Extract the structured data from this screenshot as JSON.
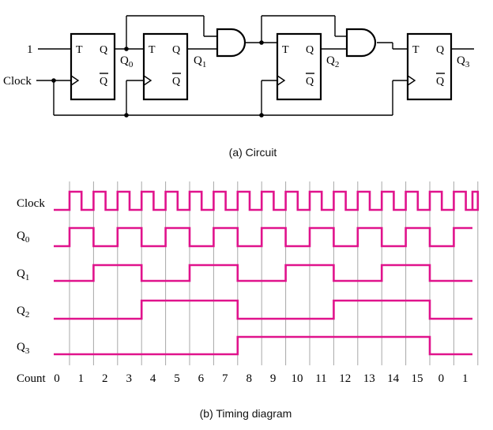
{
  "circuit": {
    "input_label": "1",
    "clock_label": "Clock",
    "ff_t_label": "T",
    "ff_q_label": "Q",
    "ff_qbar_label": "Q",
    "outputs": [
      {
        "base": "Q",
        "sub": "0"
      },
      {
        "base": "Q",
        "sub": "1"
      },
      {
        "base": "Q",
        "sub": "2"
      },
      {
        "base": "Q",
        "sub": "3"
      }
    ],
    "caption": "(a) Circuit"
  },
  "timing": {
    "signals": [
      {
        "base": "Clock",
        "sub": ""
      },
      {
        "base": "Q",
        "sub": "0"
      },
      {
        "base": "Q",
        "sub": "1"
      },
      {
        "base": "Q",
        "sub": "2"
      },
      {
        "base": "Q",
        "sub": "3"
      }
    ],
    "count_label": "Count",
    "counts": [
      "0",
      "1",
      "2",
      "3",
      "4",
      "5",
      "6",
      "7",
      "8",
      "9",
      "10",
      "11",
      "12",
      "13",
      "14",
      "15",
      "0",
      "1"
    ],
    "waveform_color": "#e0138c",
    "caption": "(b) Timing diagram"
  }
}
